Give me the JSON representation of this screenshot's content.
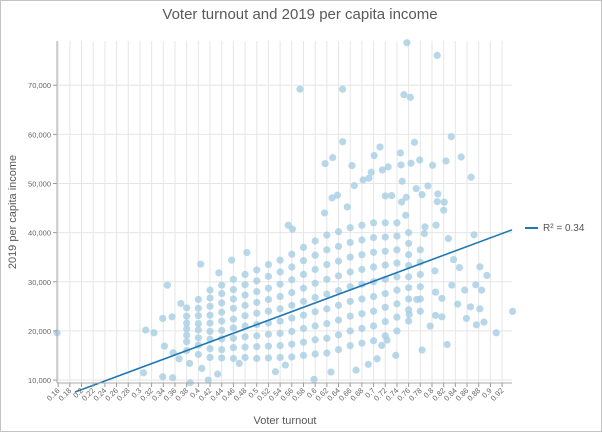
{
  "chart_data": {
    "type": "scatter",
    "title": "Voter turnout and 2019 per capita income",
    "xlabel": "Voter turnout",
    "ylabel": "2019 per capita income",
    "xlim": [
      0.158,
      0.937
    ],
    "ylim": [
      9400,
      79000
    ],
    "x_ticks": [
      "0.16",
      "0.18",
      "0.2",
      "0.22",
      "0.24",
      "0.26",
      "0.28",
      "0.3",
      "0.32",
      "0.34",
      "0.36",
      "0.38",
      "0.4",
      "0.42",
      "0.44",
      "0.46",
      "0.48",
      "0.5",
      "0.52",
      "0.54",
      "0.56",
      "0.58",
      "0.6",
      "0.62",
      "0.64",
      "0.66",
      "0.68",
      "0.7",
      "0.72",
      "0.74",
      "0.76",
      "0.78",
      "0.8",
      "0.82",
      "0.84",
      "0.86",
      "0.88",
      "0.9",
      "0.92"
    ],
    "y_ticks": [
      "10,000",
      "20,000",
      "30,000",
      "40,000",
      "50,000",
      "60,000",
      "70,000"
    ],
    "grid": true,
    "point_color": "#a6cee3",
    "trend_color": "#1f78b4",
    "legend": {
      "position": "right",
      "label": "R² = 0.34"
    },
    "trendline": {
      "x": [
        0.189,
        0.937
      ],
      "y": [
        7560,
        40570
      ],
      "r_squared": 0.34
    },
    "points": [
      [
        0.757,
        78650
      ],
      [
        0.809,
        76070
      ],
      [
        0.574,
        69200
      ],
      [
        0.647,
        69200
      ],
      [
        0.752,
        68080
      ],
      [
        0.763,
        67530
      ],
      [
        0.833,
        59540
      ],
      [
        0.647,
        58510
      ],
      [
        0.77,
        58380
      ],
      [
        0.711,
        57440
      ],
      [
        0.746,
        56210
      ],
      [
        0.63,
        55270
      ],
      [
        0.701,
        55680
      ],
      [
        0.85,
        55400
      ],
      [
        0.617,
        54050
      ],
      [
        0.663,
        53640
      ],
      [
        0.747,
        53780
      ],
      [
        0.764,
        54120
      ],
      [
        0.779,
        54790
      ],
      [
        0.824,
        54590
      ],
      [
        0.801,
        53710
      ],
      [
        0.867,
        51270
      ],
      [
        0.696,
        52290
      ],
      [
        0.715,
        52760
      ],
      [
        0.725,
        53380
      ],
      [
        0.682,
        50720
      ],
      [
        0.692,
        51070
      ],
      [
        0.667,
        49570
      ],
      [
        0.749,
        50460
      ],
      [
        0.793,
        49500
      ],
      [
        0.773,
        48970
      ],
      [
        0.629,
        47060
      ],
      [
        0.638,
        47610
      ],
      [
        0.72,
        47470
      ],
      [
        0.731,
        47540
      ],
      [
        0.756,
        47200
      ],
      [
        0.81,
        47870
      ],
      [
        0.783,
        47740
      ],
      [
        0.809,
        46310
      ],
      [
        0.821,
        46190
      ],
      [
        0.158,
        19600
      ],
      [
        0.938,
        23970
      ],
      [
        0.91,
        19620
      ],
      [
        0.826,
        17240
      ],
      [
        0.783,
        16100
      ],
      [
        0.889,
        21790
      ],
      [
        0.876,
        21240
      ],
      [
        0.859,
        22540
      ],
      [
        0.882,
        24500
      ],
      [
        0.866,
        24900
      ],
      [
        0.885,
        28300
      ],
      [
        0.894,
        31290
      ],
      [
        0.882,
        33040
      ],
      [
        0.872,
        39550
      ],
      [
        0.856,
        28300
      ],
      [
        0.844,
        25450
      ],
      [
        0.834,
        29310
      ],
      [
        0.817,
        26610
      ],
      [
        0.817,
        22870
      ],
      [
        0.806,
        23150
      ],
      [
        0.797,
        20980
      ],
      [
        0.847,
        32890
      ],
      [
        0.837,
        34510
      ],
      [
        0.828,
        38780
      ],
      [
        0.875,
        29380
      ],
      [
        0.805,
        32220
      ],
      [
        0.806,
        27890
      ],
      [
        0.31,
        20170
      ],
      [
        0.306,
        11480
      ],
      [
        0.347,
        29310
      ],
      [
        0.339,
        10670
      ],
      [
        0.386,
        9450
      ],
      [
        0.356,
        10470
      ],
      [
        0.324,
        19620
      ],
      [
        0.342,
        16910
      ],
      [
        0.357,
        15550
      ],
      [
        0.339,
        22540
      ],
      [
        0.355,
        22870
      ],
      [
        0.37,
        25590
      ],
      [
        0.404,
        33580
      ],
      [
        0.435,
        31810
      ],
      [
        0.457,
        34400
      ],
      [
        0.483,
        35960
      ],
      [
        0.367,
        14330
      ],
      [
        0.406,
        12370
      ],
      [
        0.417,
        10000
      ],
      [
        0.433,
        11220
      ],
      [
        0.385,
        13390
      ],
      [
        0.47,
        13390
      ],
      [
        0.532,
        11690
      ],
      [
        0.549,
        13050
      ],
      [
        0.598,
        10140
      ],
      [
        0.627,
        11630
      ],
      [
        0.67,
        12030
      ],
      [
        0.691,
        13190
      ],
      [
        0.706,
        14330
      ],
      [
        0.738,
        15020
      ],
      [
        0.714,
        17050
      ],
      [
        0.723,
        18130
      ],
      [
        0.761,
        23350
      ],
      [
        0.774,
        26400
      ],
      [
        0.554,
        41510
      ],
      [
        0.561,
        40700
      ],
      [
        0.616,
        44010
      ],
      [
        0.655,
        45230
      ],
      [
        0.748,
        46250
      ],
      [
        0.82,
        44560
      ],
      [
        0.807,
        41510
      ],
      [
        0.787,
        39820
      ],
      [
        0.788,
        41170
      ],
      [
        0.755,
        43540
      ]
    ],
    "point_columns": [
      {
        "x": 0.38,
        "y": [
          16000,
          17800,
          19100,
          20400,
          21600,
          23000,
          24700
        ]
      },
      {
        "x": 0.4,
        "y": [
          15200,
          17100,
          18600,
          20200,
          21500,
          23100,
          24600,
          26400
        ]
      },
      {
        "x": 0.42,
        "y": [
          14600,
          16400,
          18300,
          19900,
          21600,
          23200,
          25000,
          26700,
          28300
        ]
      },
      {
        "x": 0.44,
        "y": [
          14500,
          16200,
          18400,
          20100,
          22000,
          23800,
          25700,
          27600,
          29300
        ]
      },
      {
        "x": 0.46,
        "y": [
          14400,
          16600,
          18500,
          20600,
          22400,
          24600,
          26500,
          28400,
          30500
        ]
      },
      {
        "x": 0.48,
        "y": [
          14600,
          16700,
          18800,
          21000,
          23100,
          25200,
          27300,
          29400,
          31500
        ]
      },
      {
        "x": 0.5,
        "y": [
          14400,
          16800,
          19000,
          21300,
          23600,
          25800,
          28000,
          30200,
          32400
        ]
      },
      {
        "x": 0.52,
        "y": [
          14500,
          16900,
          19300,
          21600,
          24000,
          26400,
          28700,
          31100,
          33500
        ]
      },
      {
        "x": 0.54,
        "y": [
          14600,
          17000,
          19500,
          22000,
          24500,
          27000,
          29500,
          32000,
          34400
        ]
      },
      {
        "x": 0.56,
        "y": [
          14700,
          17300,
          19900,
          22600,
          25200,
          27800,
          30400,
          33000,
          35600
        ]
      },
      {
        "x": 0.58,
        "y": [
          15000,
          17700,
          20500,
          23200,
          26000,
          28700,
          31500,
          34300,
          37000
        ]
      },
      {
        "x": 0.6,
        "y": [
          15300,
          18200,
          21000,
          23900,
          26800,
          29700,
          32500,
          35400,
          38300
        ]
      },
      {
        "x": 0.62,
        "y": [
          15500,
          18500,
          21500,
          24500,
          27500,
          30500,
          33500,
          36500,
          39500
        ]
      },
      {
        "x": 0.64,
        "y": [
          16200,
          19200,
          22200,
          25200,
          28200,
          31200,
          34200,
          37200,
          40200
        ]
      },
      {
        "x": 0.66,
        "y": [
          17000,
          20000,
          23000,
          26000,
          29000,
          32000,
          35000,
          38000,
          41000
        ]
      },
      {
        "x": 0.68,
        "y": [
          17500,
          20500,
          23500,
          26500,
          29500,
          32500,
          35500,
          38500,
          41500
        ]
      },
      {
        "x": 0.7,
        "y": [
          18000,
          21000,
          24000,
          27000,
          30000,
          33000,
          36000,
          39000,
          42000
        ]
      },
      {
        "x": 0.72,
        "y": [
          19000,
          21900,
          24800,
          27600,
          30500,
          33400,
          36200,
          39100,
          42000
        ]
      },
      {
        "x": 0.74,
        "y": [
          20000,
          22800,
          25500,
          28300,
          31000,
          33800,
          36500,
          39300,
          42000
        ]
      },
      {
        "x": 0.76,
        "y": [
          22000,
          24300,
          26500,
          28800,
          31000,
          33300,
          35500,
          37800,
          40000
        ]
      },
      {
        "x": 0.78,
        "y": [
          24000,
          26500,
          29000,
          31500,
          34000,
          36500
        ]
      }
    ]
  }
}
